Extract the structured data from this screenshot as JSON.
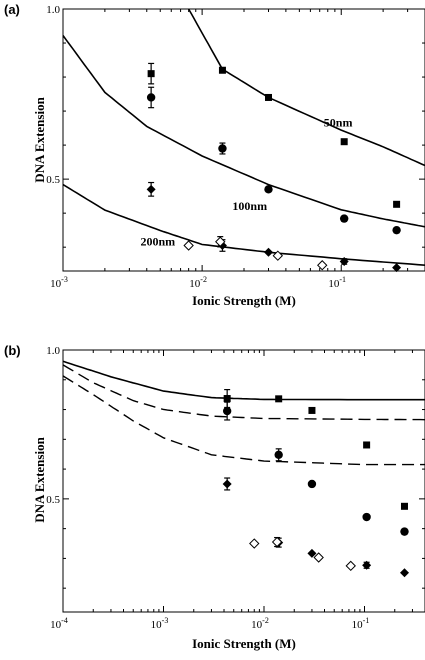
{
  "chart_data": [
    {
      "panel": "(a)",
      "type": "scatter",
      "title": "",
      "xlabel": "Ionic Strength (M)",
      "ylabel": "DNA Extension",
      "xscale": "log",
      "xlim": [
        0.001,
        0.4
      ],
      "ylim": [
        0.23,
        1.0
      ],
      "xticks": [
        {
          "value": 0.001,
          "base": "10",
          "exp": "-3"
        },
        {
          "value": 0.01,
          "base": "10",
          "exp": "-2"
        },
        {
          "value": 0.1,
          "base": "10",
          "exp": "-1"
        }
      ],
      "yticks": [
        {
          "value": 1.0,
          "label": "1.0"
        },
        {
          "value": 0.5,
          "label": "0.5"
        }
      ],
      "curve_labels": [
        {
          "text": "50nm",
          "x": 0.095,
          "y": 0.655
        },
        {
          "text": "100nm",
          "x": 0.022,
          "y": 0.41
        },
        {
          "text": "200nm",
          "x": 0.0048,
          "y": 0.305
        }
      ],
      "series": [
        {
          "marker": "square",
          "points": [
            {
              "x": 0.0043,
              "y": 0.81,
              "err": 0.03
            },
            {
              "x": 0.014,
              "y": 0.82
            },
            {
              "x": 0.03,
              "y": 0.74
            },
            {
              "x": 0.105,
              "y": 0.61
            },
            {
              "x": 0.25,
              "y": 0.426
            }
          ]
        },
        {
          "marker": "circle",
          "points": [
            {
              "x": 0.0043,
              "y": 0.74,
              "err": 0.03
            },
            {
              "x": 0.014,
              "y": 0.59,
              "err": 0.016
            },
            {
              "x": 0.03,
              "y": 0.47
            },
            {
              "x": 0.105,
              "y": 0.384
            },
            {
              "x": 0.25,
              "y": 0.35
            }
          ]
        },
        {
          "marker": "diamond",
          "points": [
            {
              "x": 0.0043,
              "y": 0.47,
              "err": 0.02
            },
            {
              "x": 0.014,
              "y": 0.305,
              "err": 0.017
            },
            {
              "x": 0.03,
              "y": 0.285
            },
            {
              "x": 0.105,
              "y": 0.258,
              "err": 0.008
            },
            {
              "x": 0.25,
              "y": 0.24
            }
          ]
        },
        {
          "marker": "open-diamond",
          "points": [
            {
              "x": 0.008,
              "y": 0.305
            },
            {
              "x": 0.0135,
              "y": 0.316,
              "err": 0.015
            },
            {
              "x": 0.035,
              "y": 0.275
            },
            {
              "x": 0.073,
              "y": 0.247
            }
          ]
        }
      ],
      "fit_curves": [
        {
          "label": "50nm",
          "style": "solid",
          "points": [
            [
              0.008,
              1.0
            ],
            [
              0.014,
              0.823
            ],
            [
              0.03,
              0.74
            ],
            [
              0.1,
              0.644
            ],
            [
              0.2,
              0.595
            ],
            [
              0.4,
              0.54
            ]
          ]
        },
        {
          "label": "100nm",
          "style": "solid",
          "points": [
            [
              0.001,
              0.922
            ],
            [
              0.002,
              0.755
            ],
            [
              0.004,
              0.655
            ],
            [
              0.01,
              0.568
            ],
            [
              0.03,
              0.484
            ],
            [
              0.1,
              0.41
            ],
            [
              0.2,
              0.383
            ],
            [
              0.4,
              0.36
            ]
          ]
        },
        {
          "label": "200nm",
          "style": "solid",
          "points": [
            [
              0.001,
              0.484
            ],
            [
              0.002,
              0.409
            ],
            [
              0.005,
              0.349
            ],
            [
              0.01,
              0.308
            ],
            [
              0.03,
              0.285
            ],
            [
              0.1,
              0.266
            ],
            [
              0.4,
              0.247
            ]
          ]
        }
      ]
    },
    {
      "panel": "(b)",
      "type": "scatter",
      "title": "",
      "xlabel": "Ionic Strength (M)",
      "ylabel": "DNA Extension",
      "xscale": "log",
      "xlim": [
        0.0001,
        0.4
      ],
      "ylim": [
        0.12,
        1.0
      ],
      "xticks": [
        {
          "value": 0.0001,
          "base": "10",
          "exp": "-4"
        },
        {
          "value": 0.001,
          "base": "10",
          "exp": "-3"
        },
        {
          "value": 0.01,
          "base": "10",
          "exp": "-2"
        },
        {
          "value": 0.1,
          "base": "10",
          "exp": "-1"
        }
      ],
      "yticks": [
        {
          "value": 1.0,
          "label": "1.0"
        },
        {
          "value": 0.5,
          "label": "0.5"
        }
      ],
      "series": [
        {
          "marker": "square",
          "points": [
            {
              "x": 0.0043,
              "y": 0.837,
              "err": 0.03
            },
            {
              "x": 0.014,
              "y": 0.836
            },
            {
              "x": 0.03,
              "y": 0.797
            },
            {
              "x": 0.105,
              "y": 0.681
            },
            {
              "x": 0.25,
              "y": 0.475
            }
          ]
        },
        {
          "marker": "circle",
          "points": [
            {
              "x": 0.0043,
              "y": 0.795,
              "err": 0.03
            },
            {
              "x": 0.014,
              "y": 0.648,
              "err": 0.02
            },
            {
              "x": 0.03,
              "y": 0.55
            },
            {
              "x": 0.105,
              "y": 0.439
            },
            {
              "x": 0.25,
              "y": 0.39
            }
          ]
        },
        {
          "marker": "diamond",
          "points": [
            {
              "x": 0.0043,
              "y": 0.55,
              "err": 0.02
            },
            {
              "x": 0.014,
              "y": 0.353,
              "err": 0.015
            },
            {
              "x": 0.03,
              "y": 0.317
            },
            {
              "x": 0.105,
              "y": 0.277,
              "err": 0.01
            },
            {
              "x": 0.25,
              "y": 0.252
            }
          ]
        },
        {
          "marker": "open-diamond",
          "points": [
            {
              "x": 0.008,
              "y": 0.35
            },
            {
              "x": 0.0135,
              "y": 0.355,
              "err": 0.015
            },
            {
              "x": 0.035,
              "y": 0.303
            },
            {
              "x": 0.073,
              "y": 0.275
            }
          ]
        }
      ],
      "fit_curves": [
        {
          "style": "solid",
          "points": [
            [
              0.0001,
              0.962
            ],
            [
              0.0003,
              0.91
            ],
            [
              0.001,
              0.862
            ],
            [
              0.003,
              0.84
            ],
            [
              0.01,
              0.834
            ],
            [
              0.1,
              0.833
            ],
            [
              0.4,
              0.833
            ]
          ]
        },
        {
          "style": "dashed",
          "points": [
            [
              0.0001,
              0.95
            ],
            [
              0.0002,
              0.89
            ],
            [
              0.0005,
              0.83
            ],
            [
              0.001,
              0.8
            ],
            [
              0.003,
              0.778
            ],
            [
              0.01,
              0.77
            ],
            [
              0.1,
              0.767
            ],
            [
              0.4,
              0.766
            ]
          ]
        },
        {
          "style": "dashed",
          "points": [
            [
              0.0001,
              0.913
            ],
            [
              0.0002,
              0.85
            ],
            [
              0.0005,
              0.762
            ],
            [
              0.001,
              0.705
            ],
            [
              0.003,
              0.648
            ],
            [
              0.01,
              0.627
            ],
            [
              0.1,
              0.615
            ],
            [
              0.4,
              0.615
            ]
          ]
        }
      ]
    }
  ]
}
